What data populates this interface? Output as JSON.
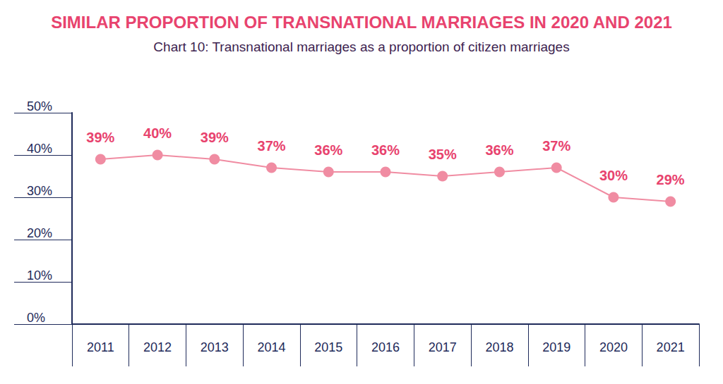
{
  "chart_data": {
    "type": "line",
    "title": "SIMILAR PROPORTION OF TRANSNATIONAL MARRIAGES IN 2020 AND 2021",
    "subtitle": "Chart 10: Transnational marriages as a proportion of citizen marriages",
    "categories": [
      "2011",
      "2012",
      "2013",
      "2014",
      "2015",
      "2016",
      "2017",
      "2018",
      "2019",
      "2020",
      "2021"
    ],
    "values": [
      39,
      40,
      39,
      37,
      36,
      36,
      35,
      36,
      37,
      30,
      29
    ],
    "value_labels": [
      "39%",
      "40%",
      "39%",
      "37%",
      "36%",
      "36%",
      "35%",
      "36%",
      "37%",
      "30%",
      "29%"
    ],
    "color": "#f08ca2",
    "ylim": [
      0,
      50
    ],
    "yticks": [
      {
        "value": 0,
        "label": "0%"
      },
      {
        "value": 10,
        "label": "10%"
      },
      {
        "value": 20,
        "label": "20%"
      },
      {
        "value": 30,
        "label": "30%"
      },
      {
        "value": 40,
        "label": "40%"
      },
      {
        "value": 50,
        "label": "50%"
      }
    ],
    "grid": false,
    "data_labels": true,
    "marker": "circle"
  }
}
